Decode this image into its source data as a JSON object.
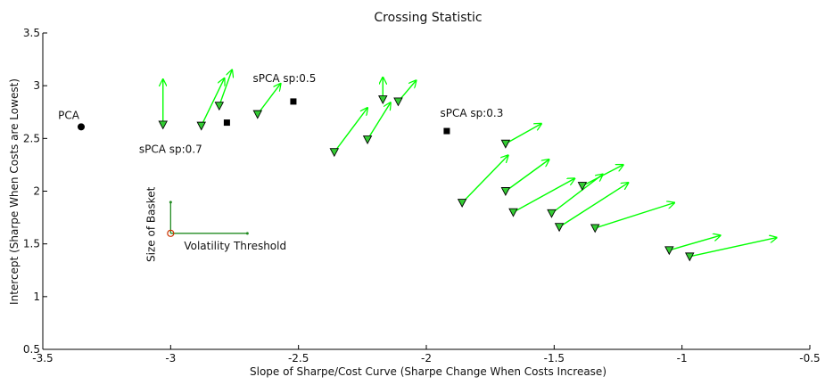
{
  "chart_data": {
    "type": "scatter",
    "title": "Crossing Statistic",
    "xlabel": "Slope of Sharpe/Cost Curve (Sharpe Change When Costs Increase)",
    "ylabel": "Intercept (Sharpe When Costs are Lowest)",
    "xlim": [
      -3.5,
      -0.5
    ],
    "ylim": [
      0.5,
      3.5
    ],
    "xticks": [
      "-3.5",
      "-3",
      "-2.5",
      "-2",
      "-1.5",
      "-1",
      "-0.5"
    ],
    "yticks": [
      "0.5",
      "1",
      "1.5",
      "2",
      "2.5",
      "3",
      "3.5"
    ],
    "grid": false,
    "colors": {
      "axis": "#000000",
      "arrow": "#00ff00",
      "marker_fill": "#33cc33",
      "marker_edge": "#000000",
      "legend_green": "#228b22",
      "legend_origin": "#cc3300"
    },
    "reference_points": [
      {
        "x": -3.35,
        "y": 2.61,
        "marker": "circle",
        "label": "PCA"
      },
      {
        "x": -2.78,
        "y": 2.65,
        "marker": "square",
        "label": ""
      },
      {
        "x": -2.52,
        "y": 2.85,
        "marker": "square",
        "label": "sPCA sp:0.5"
      },
      {
        "x": -1.92,
        "y": 2.57,
        "marker": "square",
        "label": "sPCA sp:0.3"
      }
    ],
    "extra_labels": [
      {
        "text": "sPCA sp:0.7",
        "x": -3.0,
        "y": 2.5
      }
    ],
    "series": [
      {
        "marker": "triangle-down",
        "points": [
          {
            "x": -3.03,
            "y": 2.63,
            "dx": 0.0,
            "dy": 0.43
          },
          {
            "x": -2.88,
            "y": 2.62,
            "dx": 0.09,
            "dy": 0.45
          },
          {
            "x": -2.81,
            "y": 2.81,
            "dx": 0.05,
            "dy": 0.34
          },
          {
            "x": -2.66,
            "y": 2.73,
            "dx": 0.09,
            "dy": 0.29
          },
          {
            "x": -2.36,
            "y": 2.37,
            "dx": 0.13,
            "dy": 0.42
          },
          {
            "x": -2.23,
            "y": 2.49,
            "dx": 0.09,
            "dy": 0.35
          },
          {
            "x": -2.17,
            "y": 2.87,
            "dx": 0.0,
            "dy": 0.21
          },
          {
            "x": -2.11,
            "y": 2.85,
            "dx": 0.07,
            "dy": 0.2
          },
          {
            "x": -1.86,
            "y": 1.89,
            "dx": 0.18,
            "dy": 0.45
          },
          {
            "x": -1.69,
            "y": 2.45,
            "dx": 0.14,
            "dy": 0.19
          },
          {
            "x": -1.69,
            "y": 2.0,
            "dx": 0.17,
            "dy": 0.3
          },
          {
            "x": -1.66,
            "y": 1.8,
            "dx": 0.24,
            "dy": 0.32
          },
          {
            "x": -1.51,
            "y": 1.79,
            "dx": 0.2,
            "dy": 0.37
          },
          {
            "x": -1.48,
            "y": 1.66,
            "dx": 0.27,
            "dy": 0.42
          },
          {
            "x": -1.39,
            "y": 2.05,
            "dx": 0.16,
            "dy": 0.2
          },
          {
            "x": -1.34,
            "y": 1.65,
            "dx": 0.31,
            "dy": 0.24
          },
          {
            "x": -1.05,
            "y": 1.44,
            "dx": 0.2,
            "dy": 0.14
          },
          {
            "x": -0.97,
            "y": 1.38,
            "dx": 0.34,
            "dy": 0.18
          }
        ]
      }
    ],
    "legend": {
      "x_label": "Volatility Threshold",
      "y_label": "Size of Basket"
    }
  }
}
